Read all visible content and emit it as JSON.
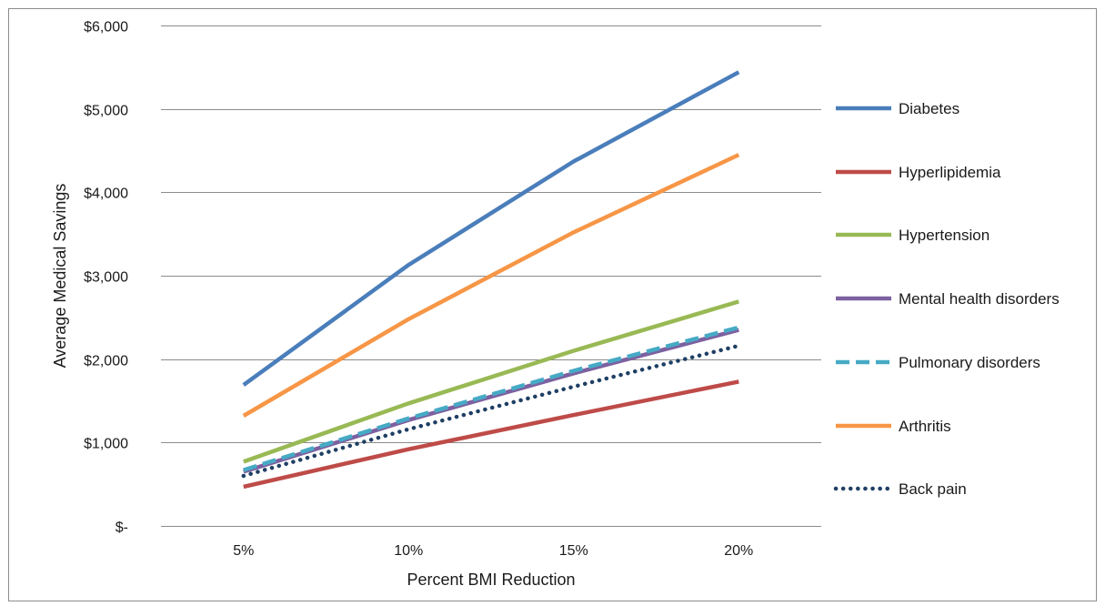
{
  "chart_data": {
    "type": "line",
    "title": "",
    "xlabel": "Percent BMI Reduction",
    "ylabel": "Average Medical Savings",
    "categories": [
      "5%",
      "10%",
      "15%",
      "20%"
    ],
    "y_ticks": [
      0,
      1000,
      2000,
      3000,
      4000,
      5000,
      6000
    ],
    "y_tick_labels": [
      "$-",
      "$1,000",
      "$2,000",
      "$3,000",
      "$4,000",
      "$5,000",
      "$6,000"
    ],
    "ylim": [
      0,
      6000
    ],
    "grid": "horizontal",
    "legend_position": "right",
    "series": [
      {
        "name": "Diabetes",
        "values": [
          1690,
          3130,
          4370,
          5440
        ],
        "color": "#4A7EBB",
        "style": "solid"
      },
      {
        "name": "Hyperlipidemia",
        "values": [
          470,
          920,
          1330,
          1730
        ],
        "color": "#BE4B48",
        "style": "solid"
      },
      {
        "name": "Hypertension",
        "values": [
          770,
          1470,
          2100,
          2690
        ],
        "color": "#98B954",
        "style": "solid"
      },
      {
        "name": "Mental health disorders",
        "values": [
          650,
          1270,
          1830,
          2350
        ],
        "color": "#7D60A0",
        "style": "solid"
      },
      {
        "name": "Pulmonary disorders",
        "values": [
          670,
          1290,
          1860,
          2380
        ],
        "color": "#46AAC5",
        "style": "dashed"
      },
      {
        "name": "Arthritis",
        "values": [
          1320,
          2480,
          3520,
          4450
        ],
        "color": "#F79646",
        "style": "solid"
      },
      {
        "name": "Back pain",
        "values": [
          600,
          1160,
          1670,
          2160
        ],
        "color": "#1F3F63",
        "style": "dotted"
      }
    ]
  }
}
